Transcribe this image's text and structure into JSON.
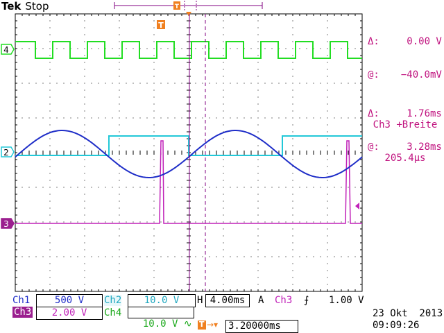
{
  "header": {
    "brand": "Tek",
    "state": "Stop",
    "trigger_marker": "T"
  },
  "cursor_readout": {
    "delta_v_label": "Δ:",
    "delta_v": "0.00 V",
    "at_v_label": "@:",
    "at_v": "−40.0mV",
    "delta_t_label": "Δ:",
    "delta_t": "1.76ms",
    "at_t_label": "@:",
    "at_t": "3.28ms"
  },
  "measurement": {
    "label": "Ch3 +Breite",
    "value": "205.4µs"
  },
  "channel_markers": {
    "ch4": "4",
    "ch2": "2",
    "ch3": "3"
  },
  "status_bar": {
    "ch1_label": "Ch1",
    "ch1_value": "500 V",
    "ch2_label": "Ch2",
    "ch2_value": "10.0 V",
    "timebase_label": "H",
    "timebase_value": "4.00ms",
    "trigger_mode": "A",
    "trigger_source": "Ch3",
    "trigger_slope": "⨍",
    "trigger_level": "1.00 V",
    "ch3_label": "Ch3",
    "ch3_value": "2.00 V",
    "ch4_label": "Ch4",
    "ch4_value": "10.0 V",
    "ch4_coupling": "∿",
    "trigger_position": "3.20000ms",
    "date": "23 Okt  2013",
    "time": "09:09:26"
  },
  "colors": {
    "ch1": "#1f2ec8",
    "ch2": "#22c8d8",
    "ch3": "#c020b8",
    "ch4": "#22dd22",
    "measurement_text": "#c0137f",
    "trigger_marker": "#f08020",
    "grid": "#000000",
    "cursor": "#800080"
  }
}
